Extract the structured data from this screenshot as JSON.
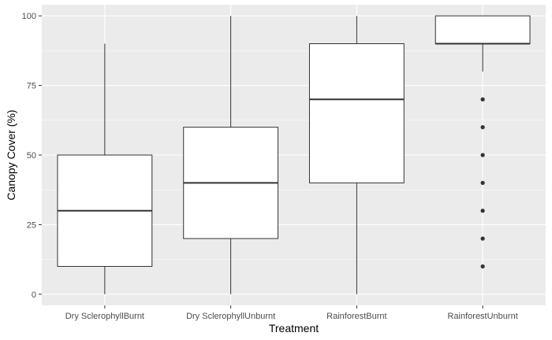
{
  "chart_data": {
    "type": "boxplot",
    "xlabel": "Treatment",
    "ylabel": "Canopy Cover (%)",
    "ylim": [
      -4,
      104
    ],
    "yticks": [
      0,
      25,
      50,
      75,
      100
    ],
    "categories": [
      "Dry SclerophyllBurnt",
      "Dry SclerophyllUnburnt",
      "RainforestBurnt",
      "RainforestUnburnt"
    ],
    "boxes": [
      {
        "category": "Dry SclerophyllBurnt",
        "whisker_low": 0,
        "q1": 10,
        "median": 30,
        "q3": 50,
        "whisker_high": 90,
        "outliers": []
      },
      {
        "category": "Dry SclerophyllUnburnt",
        "whisker_low": 0,
        "q1": 20,
        "median": 40,
        "q3": 60,
        "whisker_high": 100,
        "outliers": []
      },
      {
        "category": "RainforestBurnt",
        "whisker_low": 0,
        "q1": 40,
        "median": 70,
        "q3": 90,
        "whisker_high": 100,
        "outliers": []
      },
      {
        "category": "RainforestUnburnt",
        "whisker_low": 80,
        "q1": 90,
        "median": 90,
        "q3": 100,
        "whisker_high": 100,
        "outliers": [
          10,
          20,
          30,
          40,
          50,
          60,
          70
        ]
      }
    ],
    "grid": true,
    "colors": {
      "panel": "#ebebeb",
      "grid_major": "#ffffff",
      "box_fill": "#ffffff",
      "box_line": "#333333",
      "tick_text": "#4d4d4d",
      "title_text": "#000000"
    }
  }
}
